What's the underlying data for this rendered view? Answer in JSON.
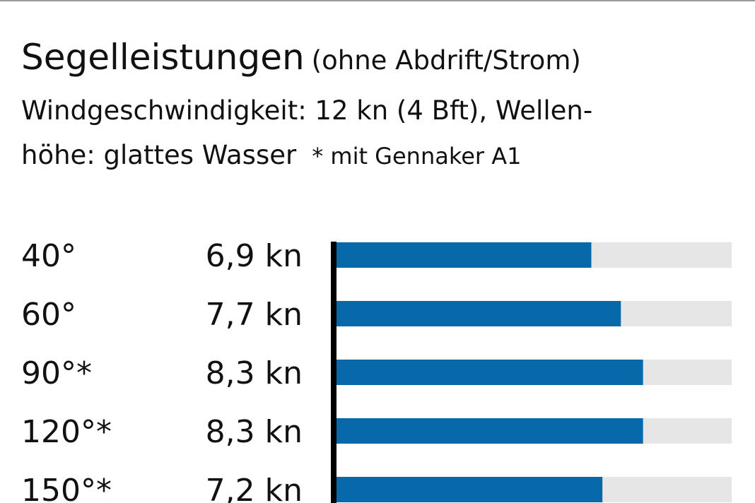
{
  "header": {
    "title": "Segelleistungen",
    "title_note": "(ohne Abdrift/Strom)",
    "subtitle_line1": "Windgeschwindigkeit: 12 kn (4 Bft), Wellen-",
    "subtitle_line2": "höhe: glattes Wasser",
    "footnote": "* mit Gennaker A1"
  },
  "colors": {
    "bar": "#0769aa",
    "track": "#e6e6e6",
    "axis": "#000000"
  },
  "chart_data": {
    "type": "bar",
    "orientation": "horizontal",
    "title": "Segelleistungen",
    "categories": [
      "40°",
      "60°",
      "90°*",
      "120°*",
      "150°*"
    ],
    "values": [
      6.9,
      7.7,
      8.3,
      8.3,
      7.2
    ],
    "value_labels": [
      "6,9 kn",
      "7,7 kn",
      "8,3 kn",
      "8,3 kn",
      "7,2 kn"
    ],
    "unit": "kn",
    "xlim": [
      0,
      10.7
    ]
  }
}
